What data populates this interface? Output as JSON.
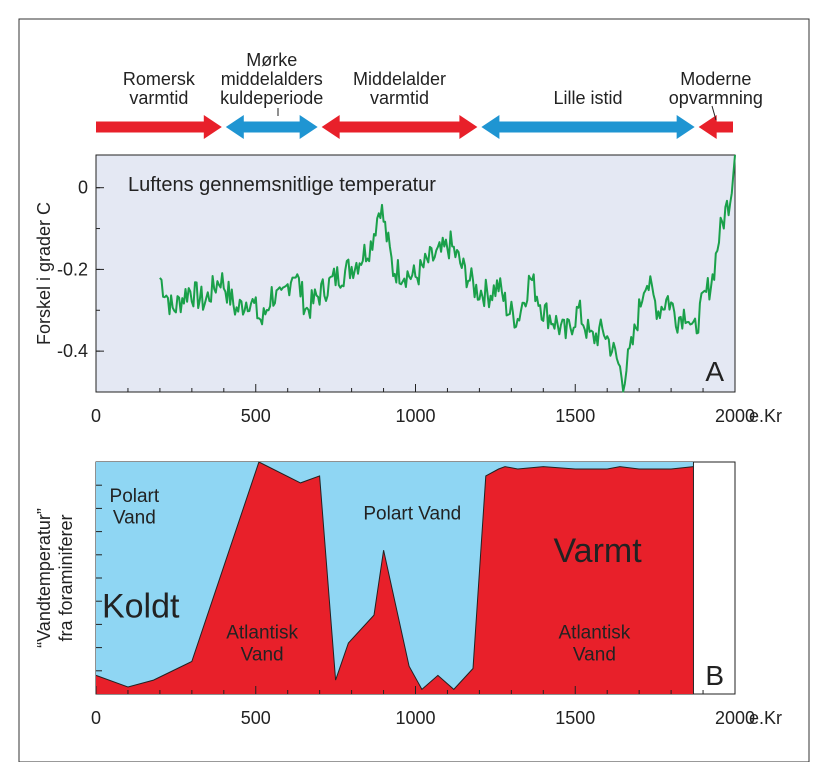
{
  "periods_bar": {
    "periods": [
      {
        "label_lines": [
          "Romersk",
          "varmtid"
        ],
        "start": 0,
        "end": 400,
        "color": "#e8202a",
        "arrow": "right"
      },
      {
        "label_lines": [
          "Mørke",
          "middelalders",
          "kuldeperiode"
        ],
        "start": 400,
        "end": 700,
        "color": "#1f95d2",
        "arrow": "both"
      },
      {
        "label_lines": [
          "Middelalder",
          "varmtid"
        ],
        "start": 700,
        "end": 1200,
        "color": "#e8202a",
        "arrow": "both"
      },
      {
        "label_lines": [
          "Lille istid"
        ],
        "start": 1200,
        "end": 1880,
        "color": "#1f95d2",
        "arrow": "both"
      },
      {
        "label_lines": [
          "Moderne",
          "opvarmning"
        ],
        "start": 1880,
        "end": 2000,
        "color": "#e8202a",
        "arrow": "left"
      }
    ]
  },
  "chart_data": [
    {
      "type": "line",
      "panel_letter": "A",
      "inner_title": "Luftens gennemsnitlige temperatur",
      "ylabel": "Forskel i grader C",
      "xlabel": "e.Kr",
      "xlim": [
        0,
        2000
      ],
      "ylim": [
        -0.5,
        0.08
      ],
      "x_ticks": [
        0,
        500,
        1000,
        1500,
        2000
      ],
      "y_ticks": [
        0,
        -0.2,
        -0.4
      ],
      "y_tick_labels": [
        "0",
        "-0.2",
        "-0.4"
      ],
      "background": "#e4e8f3",
      "series": [
        {
          "color": "#1aa04a",
          "x": [
            200,
            240,
            290,
            340,
            390,
            440,
            480,
            520,
            550,
            580,
            620,
            660,
            700,
            750,
            790,
            820,
            860,
            890,
            930,
            970,
            1000,
            1040,
            1080,
            1110,
            1150,
            1190,
            1230,
            1260,
            1290,
            1320,
            1360,
            1400,
            1440,
            1470,
            1510,
            1550,
            1590,
            1630,
            1650,
            1680,
            1720,
            1760,
            1790,
            1820,
            1850,
            1870,
            1900,
            1930,
            1950,
            1970,
            1985,
            2000
          ],
          "values": [
            -0.22,
            -0.3,
            -0.25,
            -0.28,
            -0.22,
            -0.3,
            -0.27,
            -0.33,
            -0.26,
            -0.28,
            -0.2,
            -0.3,
            -0.26,
            -0.22,
            -0.2,
            -0.18,
            -0.14,
            -0.04,
            -0.2,
            -0.21,
            -0.22,
            -0.18,
            -0.16,
            -0.14,
            -0.2,
            -0.25,
            -0.26,
            -0.24,
            -0.3,
            -0.32,
            -0.22,
            -0.3,
            -0.33,
            -0.36,
            -0.3,
            -0.37,
            -0.35,
            -0.42,
            -0.47,
            -0.38,
            -0.22,
            -0.3,
            -0.27,
            -0.32,
            -0.3,
            -0.36,
            -0.28,
            -0.22,
            -0.12,
            -0.06,
            -0.02,
            0.08
          ]
        }
      ]
    },
    {
      "type": "area",
      "panel_letter": "B",
      "ylabel_lines": [
        "“Vandtemperatur”",
        "fra foraminiferer"
      ],
      "xlabel": "e.Kr",
      "xlim": [
        0,
        2000
      ],
      "ylim": [
        0,
        1
      ],
      "x_ticks": [
        0,
        500,
        1000,
        1500,
        2000
      ],
      "y_minor_ticks": 10,
      "cold_color": "#8fd6f3",
      "warm_color": "#e8202a",
      "data_end_x": 1870,
      "boundary": {
        "x": [
          0,
          100,
          180,
          300,
          510,
          640,
          700,
          750,
          790,
          870,
          900,
          980,
          1020,
          1070,
          1120,
          1180,
          1220,
          1260,
          1280,
          1320,
          1400,
          1500,
          1600,
          1640,
          1700,
          1800,
          1870
        ],
        "values": [
          0.08,
          0.03,
          0.06,
          0.14,
          1.0,
          0.91,
          0.94,
          0.06,
          0.22,
          0.34,
          0.62,
          0.12,
          0.02,
          0.08,
          0.02,
          0.11,
          0.94,
          0.97,
          0.98,
          0.97,
          0.98,
          0.97,
          0.97,
          0.98,
          0.97,
          0.97,
          0.98
        ]
      },
      "region_labels": [
        {
          "lines": [
            "Polart",
            "Vand"
          ],
          "x": 120,
          "y": 0.81,
          "size": 19
        },
        {
          "lines": [
            "Koldt"
          ],
          "x": 140,
          "y": 0.38,
          "size": 34
        },
        {
          "lines": [
            "Atlantisk",
            "Vand"
          ],
          "x": 520,
          "y": 0.22,
          "size": 19
        },
        {
          "lines": [
            "Polart Vand"
          ],
          "x": 990,
          "y": 0.78,
          "size": 19
        },
        {
          "lines": [
            "Varmt"
          ],
          "x": 1570,
          "y": 0.62,
          "size": 34
        },
        {
          "lines": [
            "Atlantisk",
            "Vand"
          ],
          "x": 1560,
          "y": 0.22,
          "size": 19
        }
      ]
    }
  ]
}
